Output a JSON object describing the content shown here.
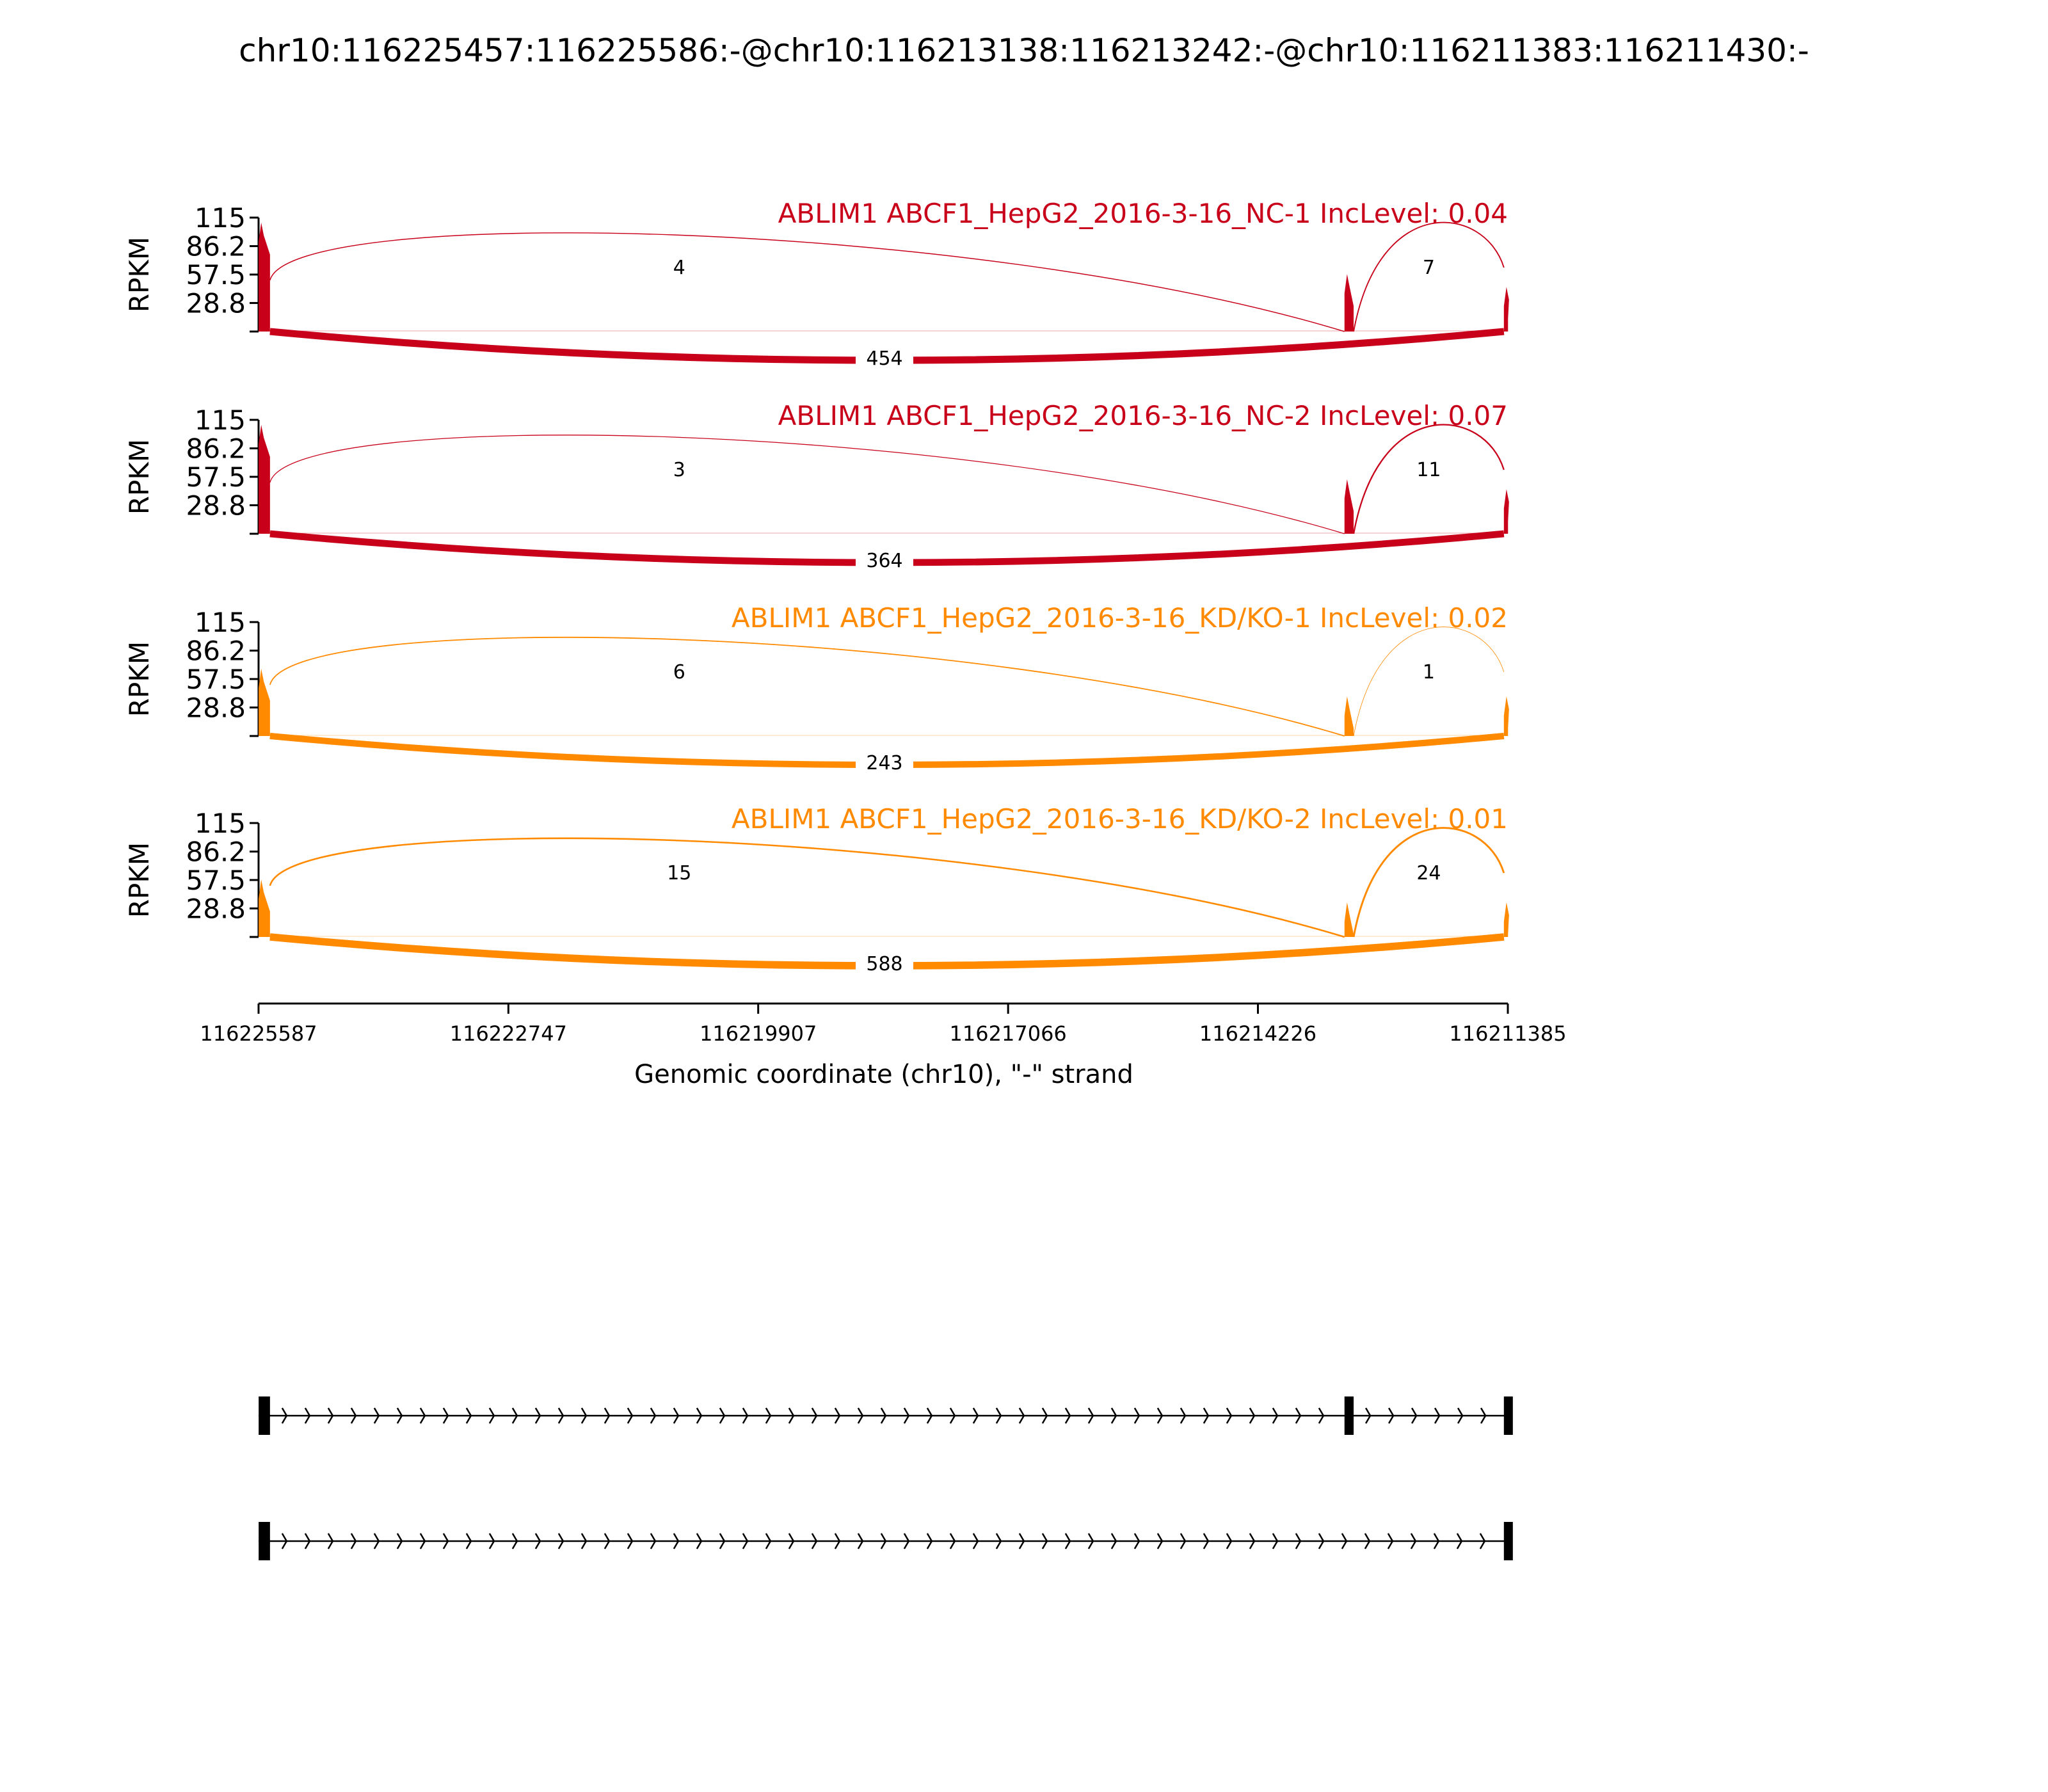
{
  "title": "chr10:116225457:116225586:-@chr10:116213138:116213242:-@chr10:116211383:116211430:-",
  "colors": {
    "nc": "#c8001a",
    "kd": "#ff8a00",
    "axis": "#000000"
  },
  "chart_data": {
    "type": "sashimi",
    "x_axis": {
      "label": "Genomic coordinate (chr10), \"-\" strand",
      "ticks": [
        "116225587",
        "116222747",
        "116219907",
        "116217066",
        "116214226",
        "116211385"
      ],
      "tick_values": [
        116225587,
        116222747,
        116219907,
        116217066,
        116214226,
        116211385
      ],
      "reversed": true
    },
    "y_axis": {
      "label": "RPKM",
      "ticks": [
        "115",
        "86.2",
        "57.5",
        "28.8"
      ],
      "tick_values": [
        115,
        86.2,
        57.5,
        28.8
      ],
      "ylim": [
        0,
        115
      ]
    },
    "exons": [
      {
        "start": 116225457,
        "end": 116225586
      },
      {
        "start": 116213138,
        "end": 116213242
      },
      {
        "start": 116211383,
        "end": 116211430
      }
    ],
    "samples": [
      {
        "label": "ABLIM1 ABCF1_HepG2_2016-3-16_NC-1 IncLevel: 0.04",
        "group": "nc",
        "peaks": [
          110,
          58,
          45
        ],
        "junctions": [
          {
            "from": 0,
            "to": 1,
            "count": "4",
            "above": true
          },
          {
            "from": 1,
            "to": 2,
            "count": "7",
            "above": true
          },
          {
            "from": 0,
            "to": 2,
            "count": "454",
            "above": false
          }
        ]
      },
      {
        "label": "ABLIM1 ABCF1_HepG2_2016-3-16_NC-2 IncLevel: 0.07",
        "group": "nc",
        "peaks": [
          110,
          55,
          45
        ],
        "junctions": [
          {
            "from": 0,
            "to": 1,
            "count": "3",
            "above": true
          },
          {
            "from": 1,
            "to": 2,
            "count": "11",
            "above": true
          },
          {
            "from": 0,
            "to": 2,
            "count": "364",
            "above": false
          }
        ]
      },
      {
        "label": "ABLIM1 ABCF1_HepG2_2016-3-16_KD/KO-1 IncLevel: 0.02",
        "group": "kd",
        "peaks": [
          68,
          40,
          40
        ],
        "junctions": [
          {
            "from": 0,
            "to": 1,
            "count": "6",
            "above": true
          },
          {
            "from": 1,
            "to": 2,
            "count": "1",
            "above": true
          },
          {
            "from": 0,
            "to": 2,
            "count": "243",
            "above": false
          }
        ]
      },
      {
        "label": "ABLIM1 ABCF1_HepG2_2016-3-16_KD/KO-2 IncLevel: 0.01",
        "group": "kd",
        "peaks": [
          58,
          35,
          35
        ],
        "junctions": [
          {
            "from": 0,
            "to": 1,
            "count": "15",
            "above": true
          },
          {
            "from": 1,
            "to": 2,
            "count": "24",
            "above": true
          },
          {
            "from": 0,
            "to": 2,
            "count": "588",
            "above": false
          }
        ]
      }
    ],
    "isoforms": [
      {
        "exons": [
          0,
          1,
          2
        ]
      },
      {
        "exons": [
          0,
          2
        ]
      }
    ]
  }
}
